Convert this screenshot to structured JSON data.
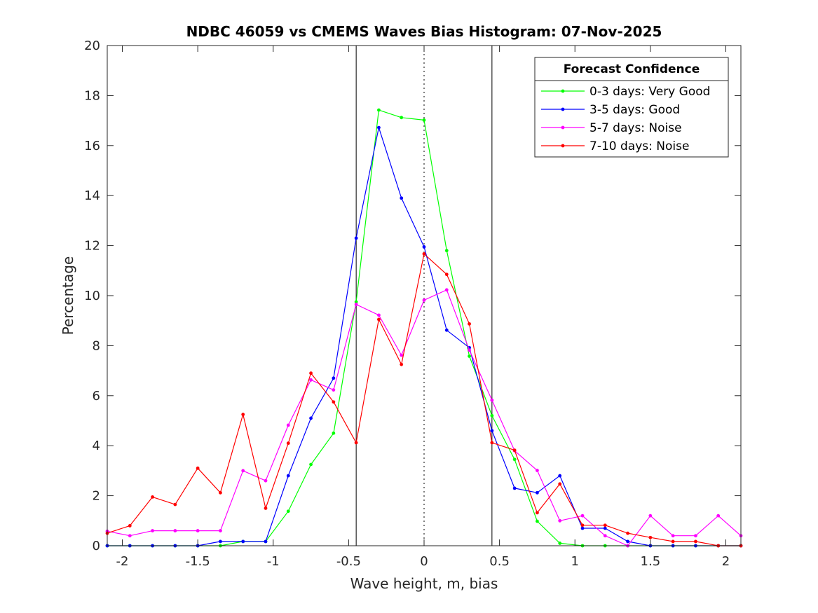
{
  "chart_data": {
    "type": "line",
    "title": "NDBC 46059 vs CMEMS Waves Bias Histogram: 07-Nov-2025",
    "xlabel": "Wave height, m, bias",
    "ylabel": "Percentage",
    "xlim": [
      -2.1,
      2.1
    ],
    "ylim": [
      0,
      20
    ],
    "xticks": [
      -2,
      -1.5,
      -1,
      -0.5,
      0,
      0.5,
      1,
      1.5,
      2
    ],
    "xtick_labels": [
      "-2",
      "-1.5",
      "-1",
      "-0.5",
      "0",
      "0.5",
      "1",
      "1.5",
      "2"
    ],
    "yticks": [
      0,
      2,
      4,
      6,
      8,
      10,
      12,
      14,
      16,
      18,
      20
    ],
    "ytick_labels": [
      "0",
      "2",
      "4",
      "6",
      "8",
      "10",
      "12",
      "14",
      "16",
      "18",
      "20"
    ],
    "reference_lines": [
      {
        "x": -0.45,
        "style": "solid"
      },
      {
        "x": 0,
        "style": "dotted"
      },
      {
        "x": 0.45,
        "style": "solid"
      }
    ],
    "legend": {
      "title": "Forecast Confidence",
      "location": "top-right"
    },
    "x": [
      -2.1,
      -1.95,
      -1.8,
      -1.65,
      -1.5,
      -1.35,
      -1.2,
      -1.05,
      -0.9,
      -0.75,
      -0.6,
      -0.45,
      -0.3,
      -0.15,
      0,
      0.15,
      0.3,
      0.45,
      0.6,
      0.75,
      0.9,
      1.05,
      1.2,
      1.35,
      1.5,
      1.65,
      1.8,
      1.95,
      2.1
    ],
    "series": [
      {
        "name": "0-3 days: Very Good",
        "color": "#00ff00",
        "values": [
          0,
          0,
          0,
          0,
          0,
          0,
          0.17,
          0.17,
          1.38,
          3.25,
          4.5,
          9.75,
          17.42,
          17.12,
          17.02,
          11.8,
          7.58,
          5.2,
          3.45,
          0.98,
          0.1,
          0,
          0,
          0,
          0,
          0,
          0,
          0,
          0
        ]
      },
      {
        "name": "3-5 days: Good",
        "color": "#0000ff",
        "values": [
          0,
          0,
          0,
          0,
          0,
          0.17,
          0.17,
          0.17,
          2.8,
          5.1,
          6.7,
          12.3,
          16.72,
          13.9,
          11.95,
          8.62,
          7.92,
          4.6,
          2.3,
          2.12,
          2.8,
          0.7,
          0.7,
          0.17,
          0,
          0,
          0,
          0,
          0
        ]
      },
      {
        "name": "5-7 days: Noise",
        "color": "#ff00ff",
        "values": [
          0.58,
          0.4,
          0.6,
          0.6,
          0.6,
          0.6,
          3.0,
          2.6,
          4.82,
          6.63,
          6.23,
          9.65,
          9.22,
          7.62,
          9.82,
          10.23,
          7.82,
          5.82,
          3.8,
          3.01,
          1.0,
          1.2,
          0.4,
          0,
          1.2,
          0.4,
          0.4,
          1.2,
          0.4
        ]
      },
      {
        "name": "7-10 days: Noise",
        "color": "#ff0000",
        "values": [
          0.5,
          0.8,
          1.95,
          1.65,
          3.1,
          2.12,
          5.25,
          1.5,
          4.1,
          6.9,
          5.75,
          4.12,
          9.05,
          7.25,
          11.67,
          10.85,
          8.87,
          4.12,
          3.82,
          1.32,
          2.47,
          0.82,
          0.82,
          0.5,
          0.33,
          0.17,
          0.17,
          0,
          0
        ]
      }
    ]
  }
}
